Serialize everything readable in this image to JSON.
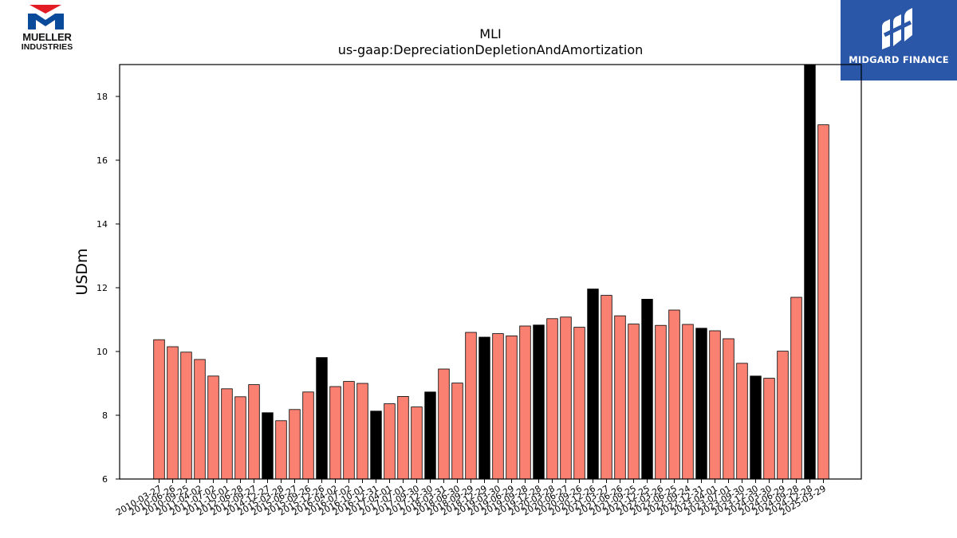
{
  "logos": {
    "left": {
      "line1": "MUELLER",
      "line2": "INDUSTRIES",
      "colors": {
        "red": "#e31b23",
        "blue": "#0a4a9a"
      }
    },
    "right": {
      "text": "MIDGARD FINANCE",
      "background": "#2a57a8"
    }
  },
  "chart_data": {
    "type": "bar",
    "title": "MLI",
    "subtitle": "us-gaap:DepreciationDepletionAndAmortization",
    "xlabel": "",
    "ylabel": "USDm",
    "ylim": [
      6,
      19
    ],
    "yticks": [
      6,
      8,
      10,
      12,
      14,
      16,
      18
    ],
    "grid": false,
    "colors": {
      "default": "#fa8072",
      "highlight": "#000000"
    },
    "x": [
      "2010-03-27",
      "2010-06-26",
      "2010-09-25",
      "2011-04-02",
      "2011-07-02",
      "2011-10-01",
      "2012-06-28",
      "2012-09-27",
      "2014-12-27",
      "2015-03-28",
      "2015-06-27",
      "2015-09-26",
      "2015-12-26",
      "2016-04-02",
      "2016-07-02",
      "2016-10-01",
      "2016-12-31",
      "2017-04-01",
      "2017-07-01",
      "2017-09-30",
      "2017-12-30",
      "2018-03-31",
      "2018-06-30",
      "2018-09-29",
      "2018-12-29",
      "2019-03-30",
      "2019-06-29",
      "2019-09-28",
      "2019-12-28",
      "2020-03-28",
      "2020-06-27",
      "2020-09-26",
      "2020-12-26",
      "2021-03-27",
      "2021-06-26",
      "2021-09-25",
      "2021-12-25",
      "2022-03-26",
      "2022-06-25",
      "2022-09-24",
      "2022-12-31",
      "2023-04-01",
      "2023-07-01",
      "2023-09-30",
      "2023-12-30",
      "2024-03-30",
      "2024-06-29",
      "2024-09-28",
      "2024-12-28",
      "2025-03-29"
    ],
    "values": [
      10.37,
      10.15,
      9.98,
      9.75,
      9.23,
      8.83,
      8.58,
      8.96,
      8.08,
      7.83,
      8.18,
      8.73,
      9.81,
      8.9,
      9.06,
      9.0,
      8.13,
      8.36,
      8.59,
      8.26,
      8.73,
      9.45,
      9.01,
      10.6,
      10.45,
      10.56,
      10.49,
      10.8,
      10.83,
      11.03,
      11.08,
      10.76,
      11.96,
      11.76,
      11.12,
      10.86,
      11.64,
      10.82,
      11.3,
      10.85,
      10.73,
      10.65,
      10.4,
      9.63,
      9.23,
      9.16,
      10.01,
      11.7,
      19.0,
      17.11
    ],
    "highlight": [
      false,
      false,
      false,
      false,
      false,
      false,
      false,
      false,
      true,
      false,
      false,
      false,
      true,
      false,
      false,
      false,
      true,
      false,
      false,
      false,
      true,
      false,
      false,
      false,
      true,
      false,
      false,
      false,
      true,
      false,
      false,
      false,
      true,
      false,
      false,
      false,
      true,
      false,
      false,
      false,
      true,
      false,
      false,
      false,
      true,
      false,
      false,
      false,
      true,
      false
    ]
  }
}
